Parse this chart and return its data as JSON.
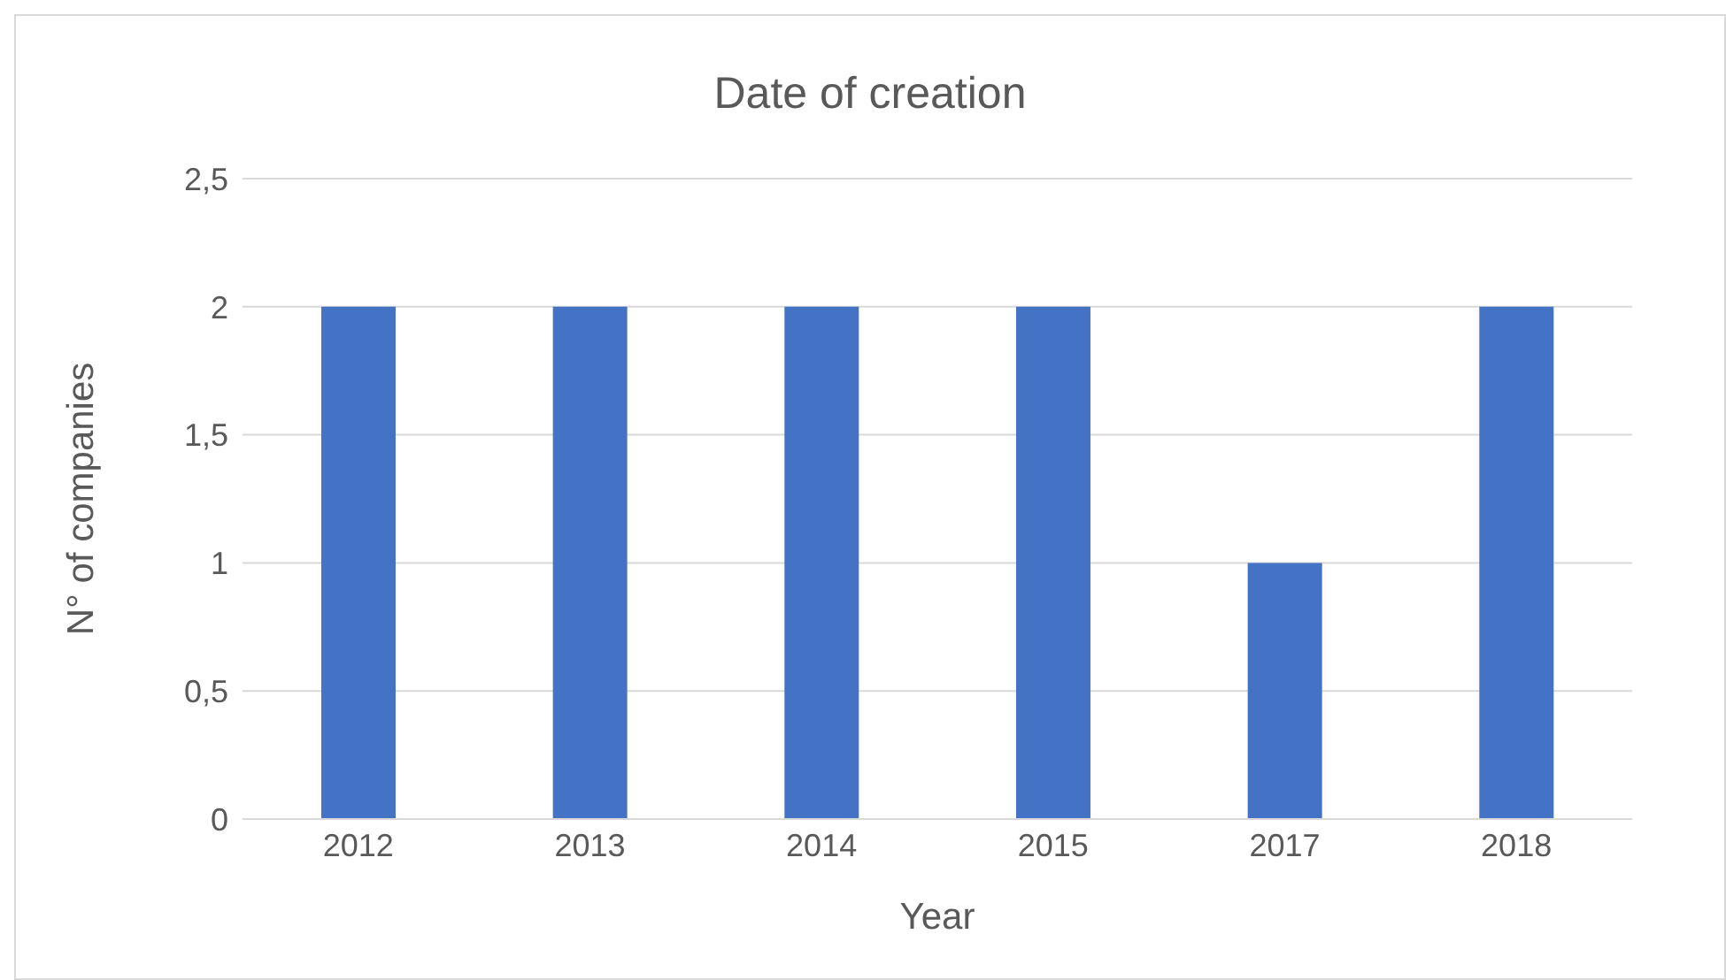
{
  "chart_data": {
    "type": "bar",
    "title": "Date of creation",
    "xlabel": "Year",
    "ylabel": "N° of companies",
    "categories": [
      "2012",
      "2013",
      "2014",
      "2015",
      "2017",
      "2018"
    ],
    "values": [
      2,
      2,
      2,
      2,
      1,
      2
    ],
    "color": "#4472c4",
    "ylim": [
      0,
      2.5
    ],
    "yticks": [
      0,
      {
        "value": 0.5,
        "label": "0,5"
      },
      1,
      {
        "value": 1.5,
        "label": "1,5"
      },
      2,
      {
        "value": 2.5,
        "label": "2,5"
      }
    ],
    "grid": "y"
  }
}
